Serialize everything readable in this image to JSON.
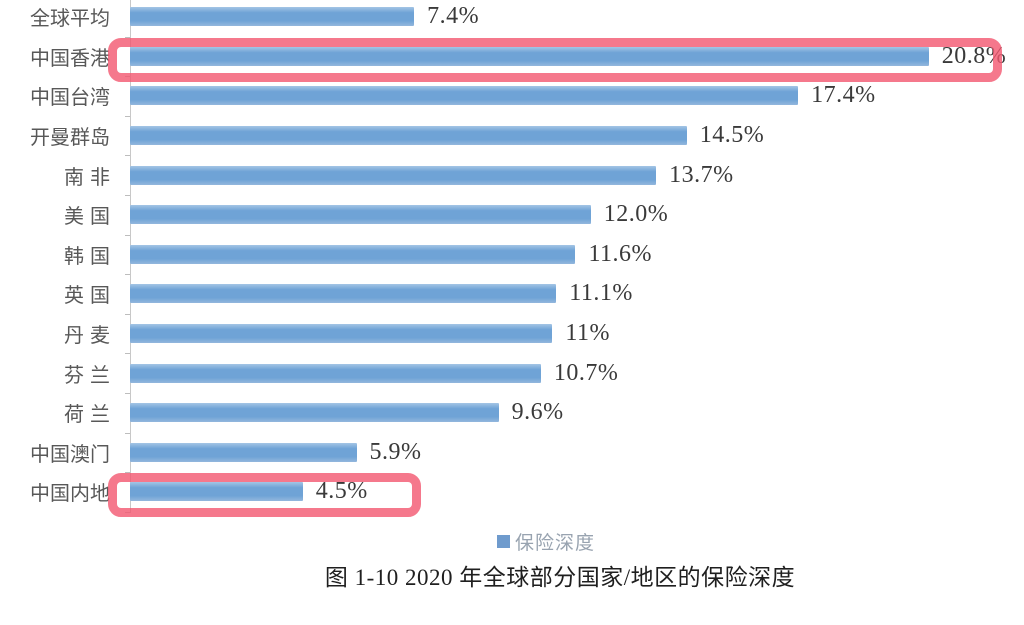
{
  "page": {
    "background": "#ffffff"
  },
  "chart_data": {
    "type": "bar",
    "orientation": "horizontal",
    "title": "",
    "caption": "图 1-10 2020 年全球部分国家/地区的保险深度",
    "legend": [
      {
        "label": "保险深度",
        "color": "#6f9bcd"
      }
    ],
    "legend_position": "bottom",
    "categories": [
      "全球平均",
      "中国香港",
      "中国台湾",
      "开曼群岛",
      "南非",
      "美国",
      "韩国",
      "英国",
      "丹麦",
      "芬兰",
      "荷兰",
      "中国澳门",
      "中国内地"
    ],
    "values": [
      7.4,
      20.8,
      17.4,
      14.5,
      13.7,
      12.0,
      11.6,
      11.1,
      11,
      10.7,
      9.6,
      5.9,
      4.5
    ],
    "value_labels": [
      "7.4%",
      "20.8%",
      "17.4%",
      "14.5%",
      "13.7%",
      "12.0%",
      "11.6%",
      "11.1%",
      "11%",
      "10.7%",
      "9.6%",
      "5.9%",
      "4.5%"
    ],
    "xlim": [
      0,
      21.5
    ],
    "grid": false,
    "bar_color": "#6fa3d6",
    "axis_color": "#c8c8c8",
    "highlight_color": "#f2566f",
    "highlighted_categories": [
      "中国香港",
      "中国内地"
    ]
  }
}
